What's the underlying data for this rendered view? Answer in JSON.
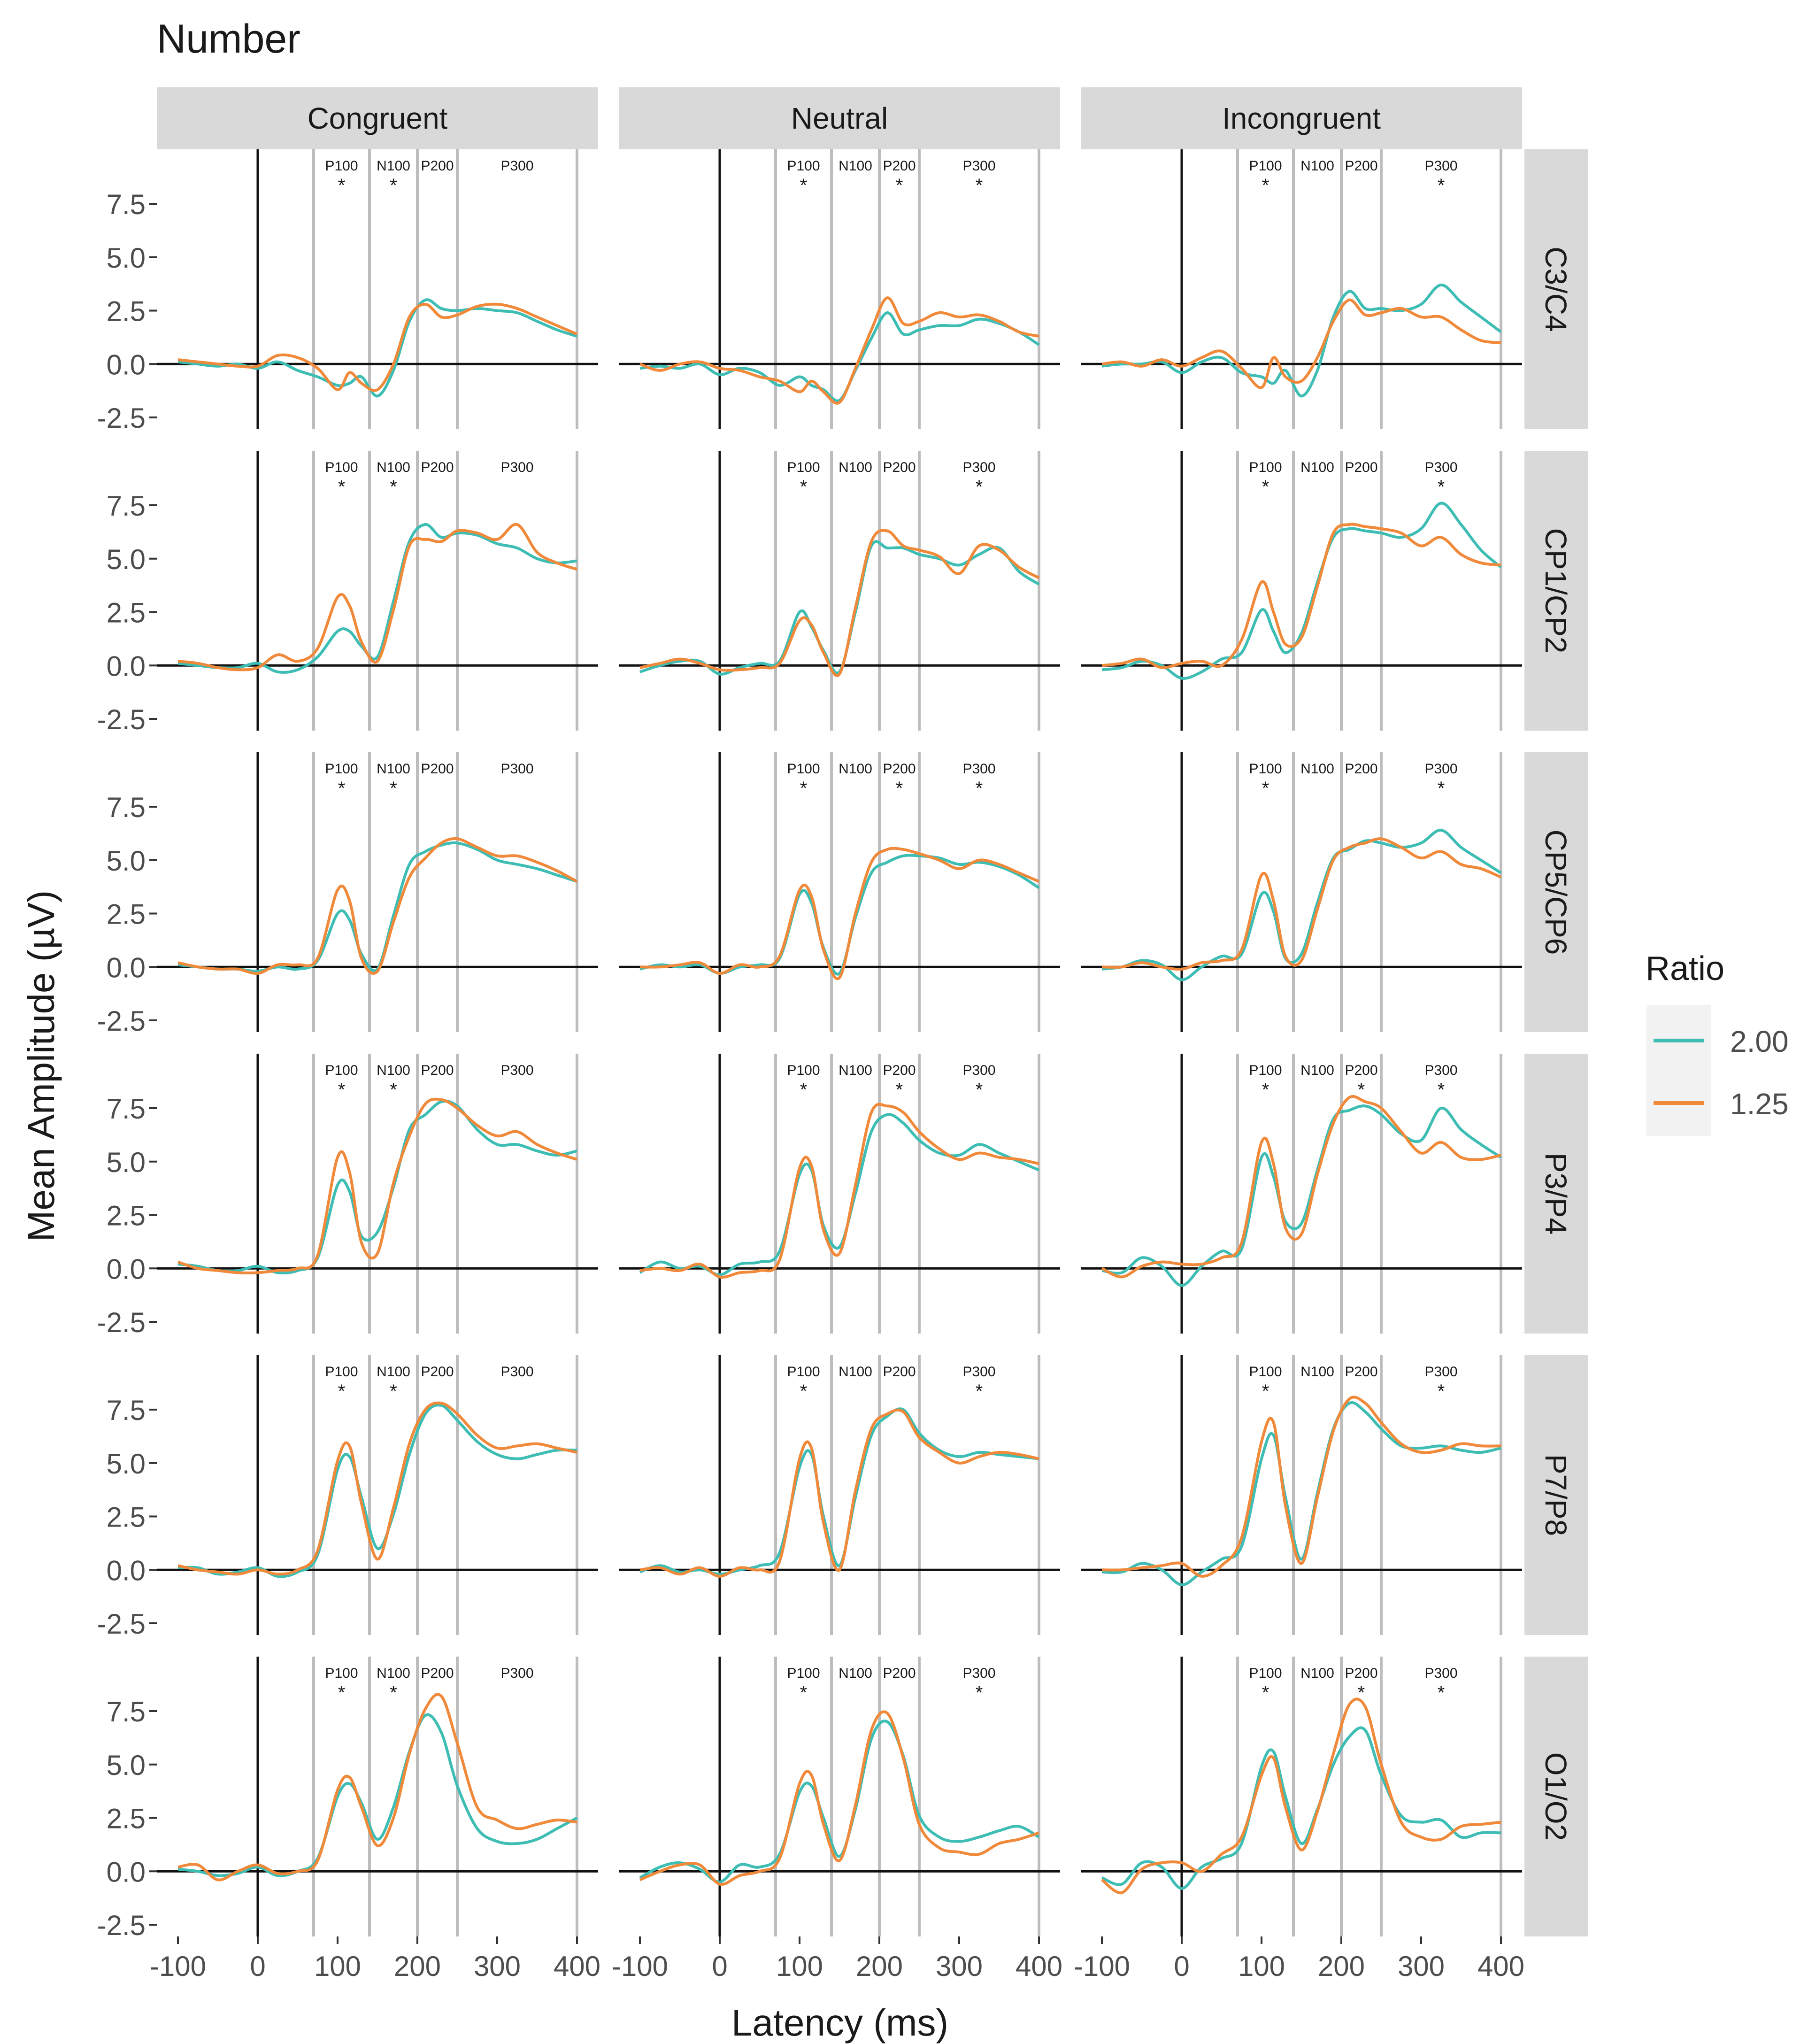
{
  "chart_data": {
    "type": "line",
    "title": "Number",
    "xlabel": "Latency (ms)",
    "ylabel": "Mean Amplitude (µV)",
    "xlim": [
      -100,
      400
    ],
    "ylim": [
      -2.5,
      9.5
    ],
    "x_ticks": [
      -100,
      0,
      100,
      200,
      300,
      400
    ],
    "x_tick_labels": [
      "-100",
      "0",
      "100",
      "200",
      "300",
      "400"
    ],
    "y_ticks": [
      -2.5,
      0,
      2.5,
      5,
      7.5
    ],
    "y_tick_labels": [
      "-2.5",
      "0.0",
      "2.5",
      "5.0",
      "7.5"
    ],
    "columns": [
      "Congruent",
      "Neutral",
      "Incongruent"
    ],
    "rows": [
      "C3/C4",
      "CP1/CP2",
      "CP5/CP6",
      "P3/P4",
      "P7/P8",
      "O1/O2"
    ],
    "legend": {
      "title": "Ratio",
      "position": "right",
      "entries": [
        {
          "label": "2.00",
          "color": "#3dbdb3"
        },
        {
          "label": "1.25",
          "color": "#f0893a"
        }
      ]
    },
    "windows": [
      {
        "label": "P100",
        "from": 70,
        "to": 140
      },
      {
        "label": "N100",
        "from": 140,
        "to": 200
      },
      {
        "label": "P200",
        "from": 200,
        "to": 250
      },
      {
        "label": "P300",
        "from": 250,
        "to": 400
      }
    ],
    "component_labels": [
      {
        "text": "P100",
        "x": 105
      },
      {
        "text": "N100",
        "x": 170
      },
      {
        "text": "P200",
        "x": 225
      },
      {
        "text": "P300",
        "x": 325
      }
    ],
    "significance_marker": "*",
    "significance": {
      "Congruent": [
        [
          "P100",
          "N100"
        ],
        [
          "P100",
          "N100"
        ],
        [
          "P100",
          "N100"
        ],
        [
          "P100",
          "N100"
        ],
        [
          "P100",
          "N100"
        ],
        [
          "P100",
          "N100"
        ]
      ],
      "Neutral": [
        [
          "P100",
          "P200",
          "P300"
        ],
        [
          "P100",
          "P300"
        ],
        [
          "P100",
          "P200",
          "P300"
        ],
        [
          "P100",
          "P200",
          "P300"
        ],
        [
          "P100",
          "P300"
        ],
        [
          "P100",
          "P300"
        ]
      ],
      "Incongruent": [
        [
          "P100",
          "P300"
        ],
        [
          "P100",
          "P300"
        ],
        [
          "P100",
          "P300"
        ],
        [
          "P100",
          "P200",
          "P300"
        ],
        [
          "P100",
          "P300"
        ],
        [
          "P100",
          "P200",
          "P300"
        ]
      ]
    },
    "x_samples": [
      -100,
      -75,
      -50,
      -25,
      0,
      25,
      50,
      75,
      100,
      115,
      130,
      150,
      170,
      190,
      210,
      230,
      250,
      275,
      300,
      325,
      350,
      375,
      400
    ],
    "series": {
      "C3/C4": {
        "Congruent": {
          "2.00": [
            0.1,
            0.0,
            -0.1,
            0.0,
            -0.2,
            0.1,
            -0.3,
            -0.6,
            -1.0,
            -0.9,
            -0.6,
            -1.5,
            -0.3,
            2.0,
            3.0,
            2.6,
            2.5,
            2.6,
            2.5,
            2.4,
            2.0,
            1.6,
            1.3
          ],
          "1.25": [
            0.2,
            0.1,
            0.0,
            -0.1,
            -0.1,
            0.4,
            0.3,
            -0.2,
            -1.2,
            -0.4,
            -0.9,
            -1.2,
            0.0,
            2.2,
            2.8,
            2.2,
            2.3,
            2.7,
            2.8,
            2.6,
            2.2,
            1.8,
            1.4
          ]
        },
        "Neutral": {
          "2.00": [
            -0.2,
            -0.1,
            -0.2,
            0.0,
            -0.5,
            -0.2,
            -0.4,
            -1.0,
            -0.6,
            -1.0,
            -1.2,
            -1.7,
            -0.3,
            1.2,
            2.4,
            1.4,
            1.6,
            1.8,
            1.8,
            2.1,
            1.9,
            1.5,
            0.9
          ],
          "1.25": [
            0.0,
            -0.3,
            0.0,
            0.1,
            -0.2,
            -0.3,
            -0.6,
            -0.8,
            -1.3,
            -0.8,
            -1.3,
            -1.8,
            -0.2,
            1.6,
            3.1,
            1.9,
            2.0,
            2.4,
            2.2,
            2.3,
            2.0,
            1.5,
            1.3
          ]
        },
        "Incongruent": {
          "2.00": [
            -0.1,
            0.0,
            0.0,
            0.1,
            -0.4,
            0.1,
            0.3,
            -0.4,
            -0.6,
            -0.9,
            -0.3,
            -1.5,
            -0.3,
            2.2,
            3.4,
            2.6,
            2.6,
            2.5,
            2.8,
            3.7,
            2.9,
            2.2,
            1.5
          ],
          "1.25": [
            0.0,
            0.1,
            -0.1,
            0.2,
            -0.1,
            0.3,
            0.6,
            -0.2,
            -1.1,
            0.3,
            -0.6,
            -0.8,
            0.3,
            2.0,
            3.0,
            2.3,
            2.4,
            2.6,
            2.2,
            2.2,
            1.6,
            1.1,
            1.0
          ]
        }
      },
      "CP1/CP2": {
        "Congruent": {
          "2.00": [
            0.1,
            0.0,
            -0.1,
            -0.1,
            0.1,
            -0.3,
            -0.2,
            0.4,
            1.6,
            1.6,
            0.9,
            0.4,
            3.0,
            5.8,
            6.6,
            6.0,
            6.2,
            6.1,
            5.7,
            5.5,
            5.0,
            4.8,
            4.9
          ],
          "1.25": [
            0.2,
            0.1,
            -0.1,
            -0.2,
            -0.1,
            0.5,
            0.2,
            0.8,
            3.2,
            2.8,
            1.1,
            0.2,
            2.6,
            5.6,
            5.9,
            5.8,
            6.3,
            6.2,
            5.9,
            6.6,
            5.3,
            4.8,
            4.5
          ]
        },
        "Neutral": {
          "2.00": [
            -0.3,
            0.0,
            0.2,
            0.2,
            -0.4,
            -0.1,
            0.1,
            0.2,
            2.5,
            1.8,
            0.7,
            -0.3,
            2.5,
            5.6,
            5.5,
            5.5,
            5.2,
            5.0,
            4.7,
            5.2,
            5.5,
            4.4,
            3.8
          ],
          "1.25": [
            -0.1,
            0.1,
            0.3,
            0.1,
            -0.2,
            -0.2,
            -0.1,
            0.1,
            2.1,
            1.9,
            0.6,
            -0.4,
            2.7,
            5.8,
            6.3,
            5.6,
            5.4,
            5.1,
            4.3,
            5.6,
            5.4,
            4.6,
            4.1
          ]
        },
        "Incongruent": {
          "2.00": [
            -0.2,
            -0.1,
            0.2,
            0.0,
            -0.6,
            -0.3,
            0.3,
            0.6,
            2.6,
            1.6,
            0.6,
            1.5,
            3.9,
            6.0,
            6.4,
            6.3,
            6.2,
            6.0,
            6.4,
            7.6,
            6.6,
            5.4,
            4.6
          ],
          "1.25": [
            0.0,
            0.1,
            0.3,
            -0.1,
            0.1,
            0.2,
            0.0,
            1.2,
            3.9,
            2.5,
            1.0,
            1.3,
            3.7,
            6.2,
            6.6,
            6.5,
            6.4,
            6.2,
            5.6,
            6.0,
            5.2,
            4.8,
            4.7
          ]
        }
      },
      "CP5/CP6": {
        "Congruent": {
          "2.00": [
            0.1,
            0.0,
            -0.1,
            -0.1,
            -0.2,
            0.0,
            -0.1,
            0.3,
            2.5,
            2.2,
            0.6,
            -0.1,
            2.4,
            4.8,
            5.4,
            5.7,
            5.8,
            5.5,
            5.0,
            4.8,
            4.6,
            4.3,
            4.0
          ],
          "1.25": [
            0.2,
            0.0,
            -0.1,
            -0.1,
            -0.3,
            0.1,
            0.1,
            0.4,
            3.6,
            3.1,
            0.4,
            -0.2,
            2.1,
            4.2,
            5.1,
            5.8,
            6.0,
            5.6,
            5.2,
            5.2,
            4.9,
            4.5,
            4.0
          ]
        },
        "Neutral": {
          "2.00": [
            -0.1,
            0.1,
            0.0,
            0.1,
            -0.3,
            0.0,
            0.1,
            0.4,
            3.4,
            3.0,
            0.9,
            -0.3,
            2.3,
            4.4,
            4.9,
            5.2,
            5.2,
            5.1,
            4.8,
            4.9,
            4.7,
            4.3,
            3.7
          ],
          "1.25": [
            0.0,
            0.0,
            0.1,
            0.2,
            -0.3,
            0.1,
            0.0,
            0.5,
            3.6,
            3.3,
            0.8,
            -0.5,
            2.5,
            4.9,
            5.5,
            5.5,
            5.3,
            5.0,
            4.6,
            5.0,
            4.8,
            4.4,
            4.0
          ]
        },
        "Incongruent": {
          "2.00": [
            -0.1,
            0.0,
            0.3,
            0.1,
            -0.6,
            0.0,
            0.5,
            0.6,
            3.4,
            2.6,
            0.4,
            0.6,
            3.0,
            5.1,
            5.5,
            5.9,
            5.8,
            5.6,
            5.8,
            6.4,
            5.6,
            5.0,
            4.4
          ],
          "1.25": [
            0.0,
            0.0,
            0.2,
            0.0,
            -0.1,
            0.2,
            0.3,
            0.8,
            4.3,
            3.1,
            0.5,
            0.3,
            2.7,
            5.0,
            5.6,
            5.8,
            6.0,
            5.6,
            5.1,
            5.4,
            4.8,
            4.6,
            4.2
          ]
        }
      },
      "P3/P4": {
        "Congruent": {
          "2.00": [
            0.2,
            0.1,
            -0.1,
            -0.1,
            0.1,
            -0.2,
            -0.1,
            0.5,
            3.9,
            3.6,
            1.5,
            1.7,
            3.8,
            6.5,
            7.2,
            7.8,
            7.6,
            6.5,
            5.8,
            5.8,
            5.5,
            5.3,
            5.5
          ],
          "1.25": [
            0.3,
            0.0,
            -0.1,
            -0.2,
            -0.2,
            -0.1,
            0.0,
            0.6,
            5.2,
            4.5,
            1.2,
            0.7,
            4.0,
            6.2,
            7.7,
            7.9,
            7.5,
            6.7,
            6.2,
            6.4,
            5.8,
            5.4,
            5.1
          ]
        },
        "Neutral": {
          "2.00": [
            -0.2,
            0.3,
            0.0,
            0.1,
            -0.3,
            0.2,
            0.3,
            0.8,
            4.4,
            4.6,
            2.0,
            1.0,
            3.5,
            6.4,
            7.2,
            6.8,
            6.0,
            5.4,
            5.3,
            5.8,
            5.4,
            5.0,
            4.6
          ],
          "1.25": [
            -0.1,
            0.0,
            -0.1,
            0.2,
            -0.4,
            -0.2,
            -0.1,
            0.4,
            4.7,
            4.8,
            1.8,
            0.7,
            3.9,
            7.3,
            7.6,
            7.3,
            6.4,
            5.6,
            5.1,
            5.4,
            5.2,
            5.1,
            4.9
          ]
        },
        "Incongruent": {
          "2.00": [
            -0.1,
            -0.2,
            0.5,
            0.1,
            -0.8,
            0.1,
            0.8,
            0.9,
            5.2,
            4.3,
            2.2,
            2.1,
            4.6,
            7.0,
            7.4,
            7.6,
            7.2,
            6.3,
            6.0,
            7.5,
            6.5,
            5.8,
            5.2
          ],
          "1.25": [
            0.0,
            -0.4,
            0.1,
            0.3,
            0.2,
            0.2,
            0.5,
            1.2,
            5.9,
            4.9,
            1.9,
            1.6,
            4.4,
            6.8,
            8.0,
            7.8,
            7.5,
            6.4,
            5.4,
            5.9,
            5.2,
            5.1,
            5.3
          ]
        }
      },
      "P7/P8": {
        "Congruent": {
          "2.00": [
            0.1,
            0.1,
            -0.2,
            -0.1,
            0.1,
            -0.3,
            -0.1,
            0.7,
            4.7,
            5.3,
            3.4,
            1.0,
            2.6,
            5.4,
            7.3,
            7.7,
            7.0,
            6.0,
            5.4,
            5.2,
            5.4,
            5.6,
            5.6
          ],
          "1.25": [
            0.2,
            0.0,
            -0.1,
            -0.2,
            0.0,
            -0.2,
            0.0,
            0.9,
            5.1,
            5.8,
            3.1,
            0.5,
            2.9,
            5.9,
            7.5,
            7.8,
            7.3,
            6.3,
            5.7,
            5.8,
            5.9,
            5.7,
            5.5
          ]
        },
        "Neutral": {
          "2.00": [
            -0.1,
            0.2,
            -0.1,
            0.0,
            -0.2,
            0.0,
            0.2,
            0.8,
            4.8,
            5.4,
            2.5,
            0.2,
            3.4,
            6.3,
            7.2,
            7.5,
            6.4,
            5.6,
            5.3,
            5.5,
            5.4,
            5.3,
            5.2
          ],
          "1.25": [
            0.0,
            0.1,
            -0.2,
            0.1,
            -0.3,
            0.1,
            0.0,
            0.4,
            5.2,
            5.7,
            2.2,
            0.0,
            3.7,
            6.6,
            7.3,
            7.4,
            6.2,
            5.5,
            5.0,
            5.3,
            5.5,
            5.4,
            5.2
          ]
        },
        "Incongruent": {
          "2.00": [
            -0.1,
            -0.1,
            0.3,
            0.0,
            -0.7,
            -0.1,
            0.5,
            1.1,
            5.2,
            6.3,
            3.4,
            0.5,
            3.6,
            6.6,
            7.8,
            7.4,
            6.6,
            5.8,
            5.7,
            5.8,
            5.6,
            5.5,
            5.7
          ],
          "1.25": [
            0.0,
            0.0,
            0.1,
            0.2,
            0.3,
            -0.3,
            0.2,
            1.5,
            6.0,
            6.9,
            3.0,
            0.3,
            3.4,
            6.5,
            8.0,
            7.8,
            6.9,
            5.9,
            5.5,
            5.6,
            5.9,
            5.8,
            5.8
          ]
        }
      },
      "O1/O2": {
        "Congruent": {
          "2.00": [
            0.1,
            0.0,
            -0.2,
            -0.1,
            0.2,
            -0.2,
            0.0,
            0.6,
            3.5,
            4.1,
            3.2,
            1.5,
            3.0,
            5.6,
            7.3,
            6.5,
            4.0,
            2.0,
            1.4,
            1.3,
            1.5,
            2.0,
            2.5
          ],
          "1.25": [
            0.2,
            0.3,
            -0.4,
            0.0,
            0.3,
            -0.1,
            0.0,
            0.5,
            3.8,
            4.4,
            3.0,
            1.2,
            2.5,
            5.5,
            7.6,
            8.2,
            6.0,
            3.0,
            2.4,
            2.0,
            2.2,
            2.4,
            2.3
          ]
        },
        "Neutral": {
          "2.00": [
            -0.3,
            0.2,
            0.4,
            0.1,
            -0.5,
            0.3,
            0.2,
            0.8,
            3.7,
            4.0,
            2.5,
            0.7,
            2.9,
            6.2,
            7.0,
            5.4,
            2.6,
            1.6,
            1.4,
            1.6,
            1.9,
            2.1,
            1.6
          ],
          "1.25": [
            -0.4,
            0.0,
            0.3,
            0.3,
            -0.6,
            -0.2,
            0.0,
            0.6,
            4.1,
            4.5,
            2.2,
            0.5,
            3.1,
            6.6,
            7.4,
            5.3,
            2.2,
            1.1,
            0.9,
            0.8,
            1.3,
            1.5,
            1.8
          ]
        },
        "Incongruent": {
          "2.00": [
            -0.3,
            -0.6,
            0.4,
            0.2,
            -0.8,
            0.2,
            0.6,
            1.3,
            4.9,
            5.6,
            3.5,
            1.3,
            2.9,
            5.0,
            6.3,
            6.6,
            4.5,
            2.6,
            2.3,
            2.4,
            1.6,
            1.8,
            1.8
          ],
          "1.25": [
            -0.4,
            -1.0,
            0.1,
            0.4,
            0.4,
            0.0,
            0.8,
            1.6,
            4.5,
            5.3,
            3.0,
            1.0,
            2.8,
            5.5,
            7.8,
            7.7,
            5.0,
            2.3,
            1.6,
            1.5,
            2.1,
            2.2,
            2.3
          ]
        }
      }
    }
  }
}
